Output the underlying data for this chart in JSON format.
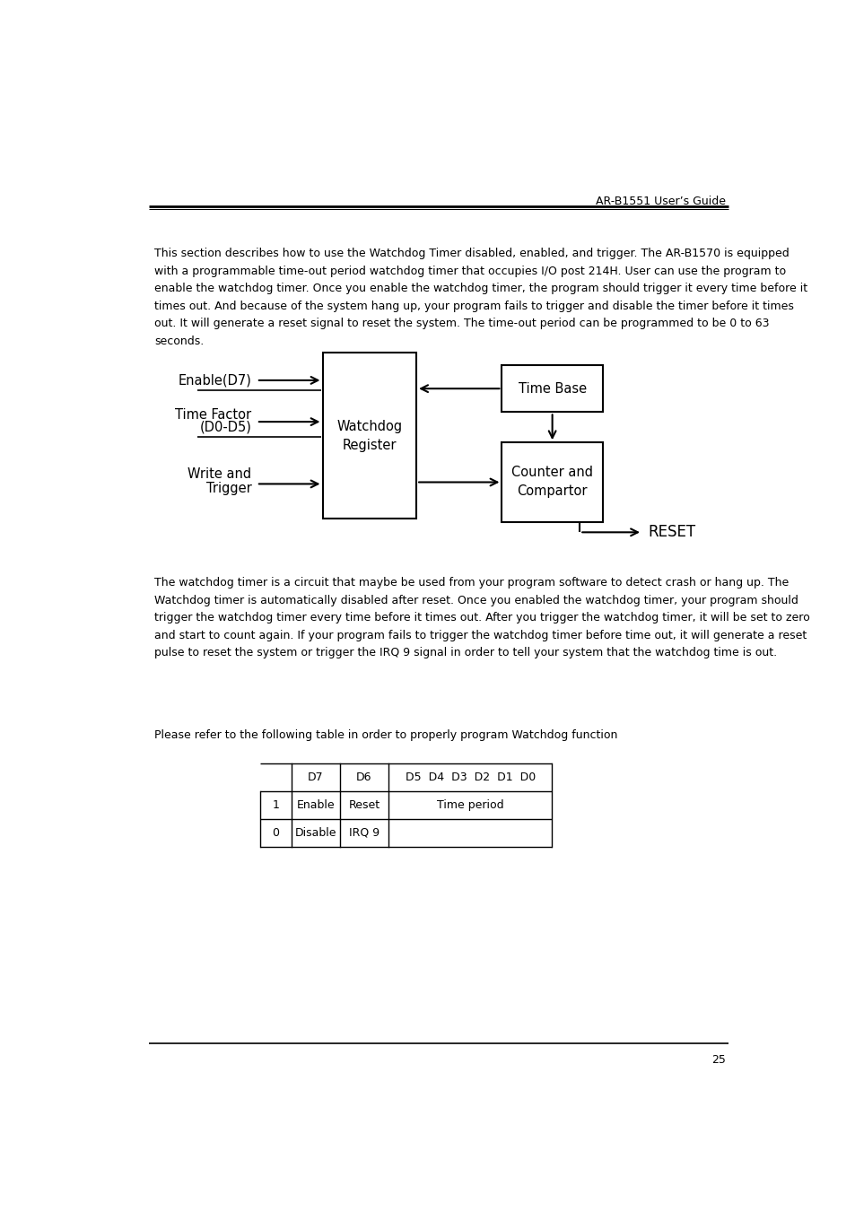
{
  "header_text": "AR-B1551 User’s Guide",
  "footer_text": "25",
  "para1": "This section describes how to use the Watchdog Timer disabled, enabled, and trigger. The AR-B1570 is equipped\nwith a programmable time-out period watchdog timer that occupies I/O post 214H. User can use the program to\nenable the watchdog timer. Once you enable the watchdog timer, the program should trigger it every time before it\ntimes out. And because of the system hang up, your program fails to trigger and disable the timer before it times\nout. It will generate a reset signal to reset the system. The time-out period can be programmed to be 0 to 63\nseconds.",
  "para2": "The watchdog timer is a circuit that maybe be used from your program software to detect crash or hang up. The\nWatchdog timer is automatically disabled after reset. Once you enabled the watchdog timer, your program should\ntrigger the watchdog timer every time before it times out. After you trigger the watchdog timer, it will be set to zero\nand start to count again. If your program fails to trigger the watchdog timer before time out, it will generate a reset\npulse to reset the system or trigger the IRQ 9 signal in order to tell your system that the watchdog time is out.",
  "para3": "Please refer to the following table in order to properly program Watchdog function",
  "bg_color": "#ffffff",
  "text_color": "#000000",
  "line_color": "#000000",
  "header_fontsize": 9,
  "body_fontsize": 9,
  "diagram_fontsize": 10.5,
  "table_fontsize": 9
}
